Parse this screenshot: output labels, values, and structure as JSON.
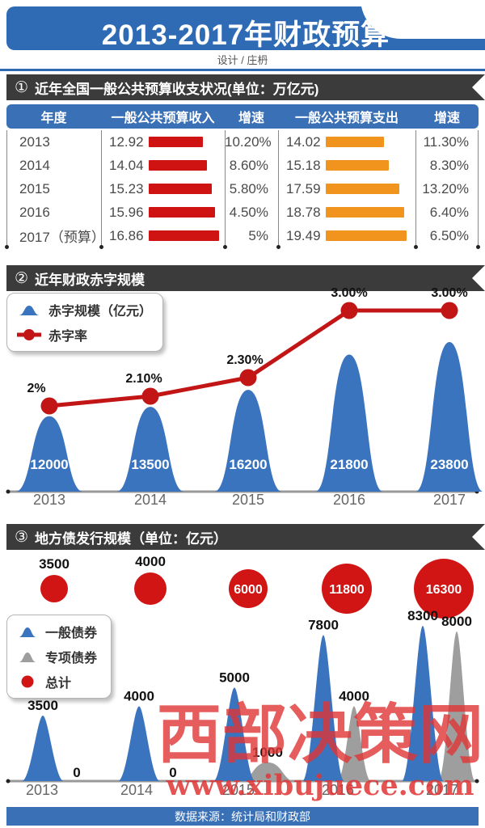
{
  "colors": {
    "banner_blue": "#2f6ab4",
    "table_blue": "#3a70b6",
    "chart_blue": "#3b74be",
    "bar_red": "#cf1313",
    "bar_orange": "#f0941d",
    "line_red": "#c21616",
    "bubble_red": "#d11414",
    "gray_series": "#9e9e9e",
    "ribbon_dark": "#3b3b3b",
    "watermark_red": "#df3434"
  },
  "header": {
    "title": "2013-2017年财政预算",
    "credit": "设计 / 庄枬"
  },
  "sections": [
    {
      "badge": "①",
      "title": "近年全国一般公共预算收支状况(单位：万亿元)"
    },
    {
      "badge": "②",
      "title": "近年财政赤字规模"
    },
    {
      "badge": "③",
      "title": "地方债发行规模（单位：亿元）"
    }
  ],
  "watermark": {
    "brand": "西部决策网",
    "url": "www.xibujuece.com"
  },
  "footer": {
    "source": "数据来源：统计局和财政部"
  },
  "chart_data": [
    {
      "type": "table",
      "title": "近年全国一般公共预算收支状况(单位：万亿元)",
      "columns": [
        "年度",
        "一般公共预算收入",
        "增速",
        "一般公共预算支出",
        "增速"
      ],
      "rows": [
        {
          "year": "2013",
          "income": 12.92,
          "income_growth": "10.20%",
          "expense": 14.02,
          "expense_growth": "11.30%"
        },
        {
          "year": "2014",
          "income": 14.04,
          "income_growth": "8.60%",
          "expense": 15.18,
          "expense_growth": "8.30%"
        },
        {
          "year": "2015",
          "income": 15.23,
          "income_growth": "5.80%",
          "expense": 17.59,
          "expense_growth": "13.20%"
        },
        {
          "year": "2016",
          "income": 15.96,
          "income_growth": "4.50%",
          "expense": 18.78,
          "expense_growth": "6.40%"
        },
        {
          "year": "2017（预算）",
          "income": 16.86,
          "income_growth": "5%",
          "expense": 19.49,
          "expense_growth": "6.50%"
        }
      ]
    },
    {
      "type": "area",
      "title": "近年财政赤字规模",
      "categories": [
        "2013",
        "2014",
        "2015",
        "2016",
        "2017"
      ],
      "legend_position": "top-left",
      "series": [
        {
          "name": "赤字规模（亿元）",
          "shape": "bell",
          "values": [
            12000,
            13500,
            16200,
            21800,
            23800
          ],
          "labels": [
            "12000",
            "13500",
            "16200",
            "21800",
            "23800"
          ]
        },
        {
          "name": "赤字率",
          "shape": "line",
          "values": [
            2,
            2.1,
            2.3,
            3,
            3
          ],
          "labels": [
            "2%",
            "2.10%",
            "2.30%",
            "3.00%",
            "3.00%"
          ]
        }
      ]
    },
    {
      "type": "bar",
      "title": "地方债发行规模（单位：亿元）",
      "categories": [
        "2013",
        "2014",
        "2015",
        "2016",
        "2017"
      ],
      "legend_position": "middle-left",
      "series": [
        {
          "name": "一般债券",
          "shape": "bell",
          "values": [
            3500,
            4000,
            5000,
            7800,
            8300
          ],
          "labels": [
            "3500",
            "4000",
            "5000",
            "7800",
            "8300"
          ]
        },
        {
          "name": "专项债券",
          "shape": "bell",
          "values": [
            0,
            0,
            1000,
            4000,
            8000
          ],
          "labels": [
            "0",
            "0",
            "1000",
            "4000",
            "8000"
          ]
        },
        {
          "name": "总计",
          "shape": "bubble",
          "values": [
            3500,
            4000,
            6000,
            11800,
            16300
          ],
          "labels": [
            "3500",
            "4000",
            "6000",
            "11800",
            "16300"
          ]
        }
      ]
    }
  ]
}
